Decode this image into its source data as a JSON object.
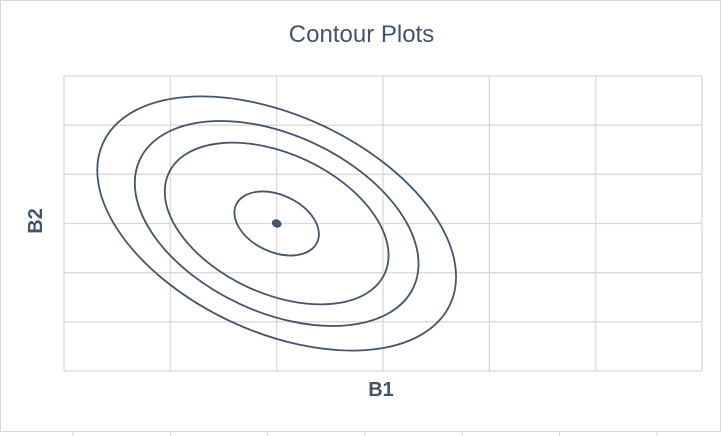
{
  "chart_data": {
    "type": "contour",
    "title": "Contour Plots",
    "xlabel": "B1",
    "ylabel": "B2",
    "grid": true,
    "xlim": [
      0,
      6
    ],
    "ylim": [
      0,
      6
    ],
    "series": [
      {
        "name": "",
        "values": []
      }
    ],
    "center": [
      2.0,
      3.0
    ],
    "contour_rx": [
      0.42,
      1.12,
      1.42,
      1.8
    ],
    "contour_ry": [
      0.58,
      1.42,
      1.8,
      2.2
    ],
    "rotation_deg": 25,
    "line_color": "#44546a",
    "grid_color": "#d9d9d9"
  }
}
